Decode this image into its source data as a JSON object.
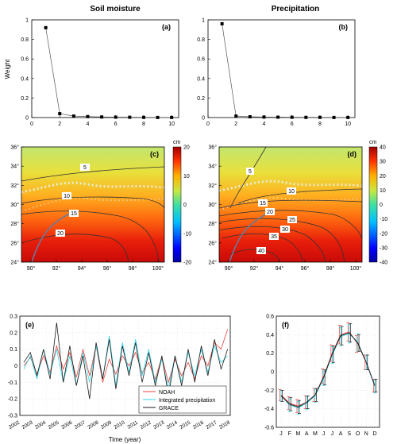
{
  "titles": {
    "left": "Soil moisture",
    "right": "Precipitation"
  },
  "chart_data": [
    {
      "panel": "(a)",
      "type": "line",
      "x": [
        1,
        2,
        3,
        4,
        5,
        6,
        7,
        8,
        9,
        10
      ],
      "values": [
        0.92,
        0.04,
        0.015,
        0.01,
        0.006,
        0.004,
        0.003,
        0.002,
        0.001,
        0.001
      ],
      "ylabel": "Weight",
      "xlim": [
        0,
        10.5
      ],
      "ylim": [
        0,
        1
      ],
      "xticks": [
        "0",
        "2",
        "4",
        "6",
        "8",
        "10"
      ],
      "yticks": [
        "0",
        "0.2",
        "0.4",
        "0.6",
        "0.8",
        "1"
      ]
    },
    {
      "panel": "(b)",
      "type": "line",
      "x": [
        1,
        2,
        3,
        4,
        5,
        6,
        7,
        8,
        9,
        10
      ],
      "values": [
        0.96,
        0.015,
        0.008,
        0.005,
        0.004,
        0.003,
        0.002,
        0.002,
        0.001,
        0.001
      ],
      "xlim": [
        0,
        10.5
      ],
      "ylim": [
        0,
        1
      ],
      "xticks": [
        "0",
        "2",
        "4",
        "6",
        "8",
        "10"
      ],
      "yticks": [
        "0",
        "0.2",
        "0.4",
        "0.6",
        "0.8",
        "1"
      ]
    },
    {
      "panel": "(c)",
      "type": "heatmap",
      "xticks": [
        "90°",
        "92°",
        "94°",
        "96°",
        "98°",
        "100°"
      ],
      "yticks": [
        "24°",
        "26°",
        "28°",
        "30°",
        "32°",
        "34°",
        "36°"
      ],
      "colorbar_unit": "cm",
      "colorbar_ticks": [
        "20",
        "10",
        "0",
        "-10",
        "-20"
      ],
      "contour_labels": [
        "5",
        "10",
        "15",
        "20"
      ]
    },
    {
      "panel": "(d)",
      "type": "heatmap",
      "xticks": [
        "90°",
        "92°",
        "94°",
        "96°",
        "98°",
        "100°"
      ],
      "yticks": [
        "24°",
        "26°",
        "28°",
        "30°",
        "32°",
        "34°",
        "36°"
      ],
      "colorbar_unit": "cm",
      "colorbar_ticks": [
        "40",
        "30",
        "20",
        "10",
        "0",
        "-10",
        "-20",
        "-30",
        "-40"
      ],
      "contour_labels": [
        "5",
        "10",
        "15",
        "20",
        "25",
        "30",
        "35",
        "40"
      ]
    },
    {
      "panel": "(e)",
      "type": "line",
      "xlabel": "Time (year)",
      "xlim": [
        2002,
        2018
      ],
      "ylim": [
        -0.3,
        0.3
      ],
      "xticks": [
        "2002",
        "2003",
        "2004",
        "2005",
        "2006",
        "2007",
        "2008",
        "2009",
        "2010",
        "2011",
        "2012",
        "2013",
        "2014",
        "2015",
        "2016",
        "2017",
        "2018"
      ],
      "yticks": [
        "0.3",
        "0.2",
        "0.1",
        "0",
        "-0.1",
        "-0.2",
        "-0.3"
      ],
      "series": [
        {
          "name": "NOAH",
          "color": "#e8413c",
          "x": [
            2002.3,
            2002.8,
            2003.3,
            2003.8,
            2004.3,
            2004.8,
            2005.3,
            2005.8,
            2006.3,
            2006.8,
            2007.3,
            2007.8,
            2008.3,
            2008.8,
            2009.3,
            2009.8,
            2010.3,
            2010.8,
            2011.3,
            2011.8,
            2012.3,
            2012.8,
            2013.3,
            2013.8,
            2014.3,
            2014.8,
            2015.3,
            2015.8,
            2016.3,
            2016.8,
            2017.3,
            2017.8
          ],
          "y": [
            0.0,
            0.05,
            -0.05,
            0.06,
            -0.04,
            0.12,
            -0.02,
            0.08,
            -0.07,
            0.1,
            -0.06,
            0.12,
            -0.1,
            0.04,
            -0.05,
            0.06,
            0.0,
            0.08,
            -0.04,
            0.02,
            -0.08,
            0.05,
            -0.1,
            0.04,
            -0.06,
            0.02,
            -0.08,
            0.06,
            0.0,
            0.14,
            0.1,
            0.22
          ]
        },
        {
          "name": "Integrated precipitation",
          "color": "#2fd6e6",
          "x": [
            2002.3,
            2002.8,
            2003.3,
            2003.8,
            2004.3,
            2004.8,
            2005.3,
            2005.8,
            2006.3,
            2006.8,
            2007.3,
            2007.8,
            2008.3,
            2008.8,
            2009.3,
            2009.8,
            2010.3,
            2010.8,
            2011.3,
            2011.8,
            2012.3,
            2012.8,
            2013.3,
            2013.8,
            2014.3,
            2014.8,
            2015.3,
            2015.8,
            2016.3,
            2016.8,
            2017.3,
            2017.8
          ],
          "y": [
            -0.02,
            0.06,
            -0.08,
            0.1,
            -0.05,
            0.1,
            -0.1,
            0.06,
            -0.12,
            0.08,
            -0.1,
            0.12,
            -0.08,
            0.18,
            -0.12,
            0.14,
            -0.04,
            0.16,
            -0.06,
            0.1,
            -0.1,
            0.04,
            -0.14,
            0.06,
            -0.1,
            0.08,
            -0.06,
            0.1,
            -0.04,
            0.12,
            0.02,
            0.06
          ]
        },
        {
          "name": "GRACE",
          "color": "#1a1a1a",
          "x": [
            2002.3,
            2002.8,
            2003.3,
            2003.8,
            2004.3,
            2004.8,
            2005.3,
            2005.8,
            2006.3,
            2006.8,
            2007.3,
            2007.8,
            2008.3,
            2008.8,
            2009.3,
            2009.8,
            2010.3,
            2010.8,
            2011.3,
            2011.8,
            2012.3,
            2012.8,
            2013.3,
            2013.8,
            2014.3,
            2014.8,
            2015.3,
            2015.8,
            2016.3,
            2016.8,
            2017.3,
            2017.8
          ],
          "y": [
            0.02,
            0.08,
            -0.06,
            0.1,
            -0.08,
            0.26,
            -0.1,
            0.12,
            -0.12,
            0.06,
            -0.2,
            0.14,
            -0.08,
            0.16,
            -0.14,
            0.12,
            -0.06,
            0.14,
            -0.1,
            0.08,
            -0.12,
            0.06,
            -0.18,
            0.06,
            -0.12,
            0.1,
            -0.1,
            0.12,
            -0.06,
            0.16,
            -0.02,
            0.1
          ]
        }
      ]
    },
    {
      "panel": "(f)",
      "type": "line",
      "categories": [
        "J",
        "F",
        "M",
        "A",
        "M",
        "J",
        "J",
        "A",
        "S",
        "O",
        "N",
        "D"
      ],
      "ylim": [
        -0.6,
        0.6
      ],
      "yticks": [
        "0.6",
        "0.4",
        "0.2",
        "0",
        "-0.2",
        "-0.4",
        "-0.6"
      ],
      "series": [
        {
          "color": "#e8413c",
          "values": [
            -0.25,
            -0.34,
            -0.37,
            -0.33,
            -0.25,
            -0.05,
            0.2,
            0.4,
            0.43,
            0.3,
            0.1,
            -0.15
          ]
        },
        {
          "color": "#2fd6e6",
          "values": [
            -0.26,
            -0.36,
            -0.39,
            -0.34,
            -0.26,
            -0.07,
            0.18,
            0.38,
            0.41,
            0.32,
            0.1,
            -0.16
          ]
        },
        {
          "color": "#1a1a1a",
          "values": [
            -0.26,
            -0.35,
            -0.38,
            -0.33,
            -0.25,
            -0.06,
            0.19,
            0.39,
            0.42,
            0.31,
            0.1,
            -0.15
          ]
        }
      ],
      "error": [
        0.06,
        0.07,
        0.07,
        0.07,
        0.07,
        0.08,
        0.09,
        0.1,
        0.1,
        0.09,
        0.08,
        0.07
      ]
    }
  ]
}
